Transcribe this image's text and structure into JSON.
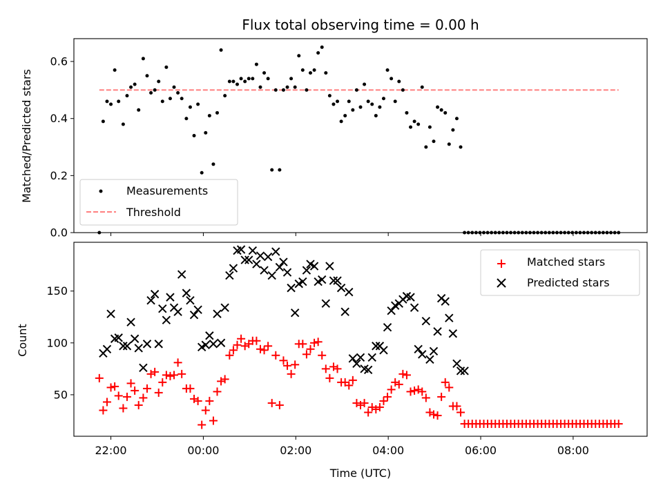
{
  "title": "Flux total observing time = 0.00 h",
  "colors": {
    "measure": "#000000",
    "threshold": "#ff7f7f",
    "matched": "#ff0000",
    "predicted": "#000000"
  },
  "chart_data": [
    {
      "type": "scatter",
      "ylabel": "Matched/Predicted stars",
      "ylim": [
        0,
        0.68
      ],
      "yticks": [
        0.0,
        0.2,
        0.4,
        0.6
      ],
      "ytick_labels": [
        "0.0",
        "0.2",
        "0.4",
        "0.6"
      ],
      "xlim": [
        "21:12",
        "09:36"
      ],
      "legend": {
        "placement": "lower-left",
        "entries": [
          "Measurements",
          "Threshold"
        ]
      },
      "threshold": 0.5,
      "series": [
        {
          "name": "Measurements",
          "x": [
            "21:45",
            "21:50",
            "21:55",
            "22:00",
            "22:05",
            "22:10",
            "22:16",
            "22:21",
            "22:26",
            "22:31",
            "22:36",
            "22:42",
            "22:47",
            "22:52",
            "22:57",
            "23:02",
            "23:07",
            "23:12",
            "23:17",
            "23:22",
            "23:27",
            "23:32",
            "23:38",
            "23:43",
            "23:48",
            "23:53",
            "23:58",
            "00:03",
            "00:08",
            "00:13",
            "00:18",
            "00:23",
            "00:28",
            "00:34",
            "00:39",
            "00:44",
            "00:49",
            "00:54",
            "00:59",
            "01:04",
            "01:09",
            "01:14",
            "01:19",
            "01:24",
            "01:29",
            "01:34",
            "01:39",
            "01:44",
            "01:49",
            "01:54",
            "01:59",
            "02:04",
            "02:09",
            "02:14",
            "02:19",
            "02:24",
            "02:29",
            "02:34",
            "02:39",
            "02:44",
            "02:49",
            "02:54",
            "02:59",
            "03:04",
            "03:09",
            "03:14",
            "03:19",
            "03:24",
            "03:29",
            "03:34",
            "03:39",
            "03:44",
            "03:49",
            "03:54",
            "03:59",
            "04:04",
            "04:09",
            "04:14",
            "04:19",
            "04:24",
            "04:29",
            "04:34",
            "04:39",
            "04:44",
            "04:49",
            "04:54",
            "04:59",
            "05:04",
            "05:09",
            "05:14",
            "05:19",
            "05:24",
            "05:29",
            "05:34",
            "05:39",
            "05:44",
            "05:49",
            "05:54",
            "05:59",
            "06:04",
            "06:09",
            "06:14",
            "06:19",
            "06:24",
            "06:29",
            "06:34",
            "06:39",
            "06:44",
            "06:49",
            "06:54",
            "06:59",
            "07:04",
            "07:09",
            "07:14",
            "07:19",
            "07:24",
            "07:29",
            "07:34",
            "07:39",
            "07:44",
            "07:49",
            "07:54",
            "07:59",
            "08:04",
            "08:09",
            "08:14",
            "08:19",
            "08:24",
            "08:29",
            "08:34",
            "08:39",
            "08:44",
            "08:49",
            "08:54",
            "08:59"
          ],
          "y": [
            0.0,
            0.39,
            0.46,
            0.45,
            0.57,
            0.46,
            0.38,
            0.48,
            0.51,
            0.52,
            0.43,
            0.61,
            0.55,
            0.49,
            0.5,
            0.53,
            0.46,
            0.58,
            0.47,
            0.51,
            0.49,
            0.47,
            0.4,
            0.44,
            0.34,
            0.45,
            0.21,
            0.35,
            0.41,
            0.24,
            0.42,
            0.64,
            0.48,
            0.53,
            0.53,
            0.52,
            0.54,
            0.53,
            0.54,
            0.54,
            0.59,
            0.51,
            0.56,
            0.54,
            0.22,
            0.5,
            0.22,
            0.5,
            0.51,
            0.54,
            0.51,
            0.62,
            0.57,
            0.5,
            0.56,
            0.57,
            0.63,
            0.65,
            0.56,
            0.48,
            0.45,
            0.46,
            0.39,
            0.41,
            0.46,
            0.43,
            0.5,
            0.44,
            0.52,
            0.46,
            0.45,
            0.41,
            0.44,
            0.47,
            0.57,
            0.54,
            0.46,
            0.53,
            0.5,
            0.42,
            0.37,
            0.39,
            0.38,
            0.51,
            0.3,
            0.37,
            0.32,
            0.44,
            0.43,
            0.42,
            0.31,
            0.36,
            0.4,
            0.3,
            0.0,
            0.0,
            0.0,
            0.0,
            0.0,
            0.0,
            0.0,
            0.0,
            0.0,
            0.0,
            0.0,
            0.0,
            0.0,
            0.0,
            0.0,
            0.0,
            0.0,
            0.0,
            0.0,
            0.0,
            0.0,
            0.0,
            0.0,
            0.0,
            0.0,
            0.0,
            0.0,
            0.0,
            0.0,
            0.0,
            0.0,
            0.0,
            0.0,
            0.0,
            0.0,
            0.0,
            0.0,
            0.0,
            0.0,
            0.0,
            0.0
          ]
        },
        {
          "name": "Threshold",
          "x": [
            "21:45",
            "08:59"
          ],
          "y": [
            0.5,
            0.5
          ]
        }
      ]
    },
    {
      "type": "scatter",
      "ylabel": "Count",
      "xlabel": "Time (UTC)",
      "ylim": [
        10,
        197
      ],
      "yticks": [
        50,
        100,
        150
      ],
      "ytick_labels": [
        "50",
        "100",
        "150"
      ],
      "xlim": [
        "21:12",
        "09:36"
      ],
      "xticks": [
        "22:00",
        "00:00",
        "02:00",
        "04:00",
        "06:00",
        "08:00"
      ],
      "xtick_labels": [
        "22:00",
        "00:00",
        "02:00",
        "04:00",
        "06:00",
        "08:00"
      ],
      "legend": {
        "placement": "upper-right",
        "entries": [
          "Matched stars",
          "Predicted stars"
        ]
      },
      "series": [
        {
          "name": "Matched stars",
          "x": [
            "21:45",
            "21:50",
            "21:55",
            "22:00",
            "22:05",
            "22:10",
            "22:16",
            "22:21",
            "22:26",
            "22:31",
            "22:36",
            "22:42",
            "22:47",
            "22:52",
            "22:57",
            "23:02",
            "23:07",
            "23:12",
            "23:17",
            "23:22",
            "23:27",
            "23:32",
            "23:38",
            "23:43",
            "23:48",
            "23:53",
            "23:58",
            "00:03",
            "00:08",
            "00:13",
            "00:18",
            "00:23",
            "00:28",
            "00:34",
            "00:39",
            "00:44",
            "00:49",
            "00:54",
            "00:59",
            "01:04",
            "01:09",
            "01:14",
            "01:19",
            "01:24",
            "01:29",
            "01:34",
            "01:39",
            "01:44",
            "01:49",
            "01:54",
            "01:59",
            "02:04",
            "02:09",
            "02:14",
            "02:19",
            "02:24",
            "02:29",
            "02:34",
            "02:39",
            "02:44",
            "02:49",
            "02:54",
            "02:59",
            "03:04",
            "03:09",
            "03:14",
            "03:19",
            "03:24",
            "03:29",
            "03:34",
            "03:39",
            "03:44",
            "03:49",
            "03:54",
            "03:59",
            "04:04",
            "04:09",
            "04:14",
            "04:19",
            "04:24",
            "04:29",
            "04:34",
            "04:39",
            "04:44",
            "04:49",
            "04:54",
            "04:59",
            "05:04",
            "05:09",
            "05:14",
            "05:19",
            "05:24",
            "05:29",
            "05:34",
            "05:39",
            "05:44",
            "05:49",
            "05:54",
            "05:59",
            "06:04",
            "06:09",
            "06:14",
            "06:19",
            "06:24",
            "06:29",
            "06:34",
            "06:39",
            "06:44",
            "06:49",
            "06:54",
            "06:59",
            "07:04",
            "07:09",
            "07:14",
            "07:19",
            "07:24",
            "07:29",
            "07:34",
            "07:39",
            "07:44",
            "07:49",
            "07:54",
            "07:59",
            "08:04",
            "08:09",
            "08:14",
            "08:19",
            "08:24",
            "08:29",
            "08:34",
            "08:39",
            "08:44",
            "08:49",
            "08:54",
            "08:59"
          ],
          "y": [
            66,
            35,
            43,
            57,
            58,
            49,
            37,
            48,
            61,
            54,
            40,
            47,
            56,
            70,
            72,
            52,
            62,
            69,
            68,
            69,
            81,
            70,
            56,
            56,
            46,
            44,
            21,
            35,
            44,
            25,
            53,
            63,
            65,
            88,
            93,
            98,
            104,
            97,
            99,
            102,
            102,
            94,
            93,
            97,
            42,
            88,
            40,
            83,
            78,
            70,
            79,
            99,
            99,
            89,
            94,
            100,
            101,
            88,
            75,
            66,
            77,
            75,
            62,
            62,
            59,
            64,
            42,
            40,
            42,
            33,
            38,
            36,
            38,
            44,
            48,
            55,
            62,
            60,
            70,
            69,
            53,
            54,
            55,
            53,
            47,
            33,
            31,
            30,
            48,
            62,
            57,
            39,
            39,
            33,
            22,
            22,
            22,
            22,
            22,
            22,
            22,
            22,
            22,
            22,
            22,
            22,
            22,
            22,
            22,
            22,
            22,
            22,
            22,
            22,
            22,
            22,
            22,
            22,
            22,
            22,
            22,
            22,
            22,
            22,
            22,
            22,
            22,
            22,
            22,
            22,
            22,
            22,
            22,
            22,
            22
          ]
        },
        {
          "name": "Predicted stars",
          "x": [
            "21:50",
            "21:55",
            "22:00",
            "22:05",
            "22:10",
            "22:16",
            "22:21",
            "22:26",
            "22:31",
            "22:36",
            "22:42",
            "22:47",
            "22:52",
            "22:57",
            "23:02",
            "23:07",
            "23:12",
            "23:17",
            "23:22",
            "23:27",
            "23:32",
            "23:38",
            "23:43",
            "23:48",
            "23:53",
            "23:58",
            "00:03",
            "00:08",
            "00:13",
            "00:18",
            "00:23",
            "00:28",
            "00:34",
            "00:39",
            "00:44",
            "00:49",
            "00:54",
            "00:59",
            "01:04",
            "01:09",
            "01:14",
            "01:19",
            "01:24",
            "01:29",
            "01:34",
            "01:39",
            "01:44",
            "01:49",
            "01:54",
            "01:59",
            "02:04",
            "02:09",
            "02:14",
            "02:19",
            "02:24",
            "02:29",
            "02:34",
            "02:39",
            "02:44",
            "02:49",
            "02:54",
            "02:59",
            "03:04",
            "03:09",
            "03:14",
            "03:19",
            "03:24",
            "03:29",
            "03:34",
            "03:39",
            "03:44",
            "03:49",
            "03:54",
            "03:59",
            "04:04",
            "04:09",
            "04:14",
            "04:19",
            "04:24",
            "04:29",
            "04:34",
            "04:39",
            "04:44",
            "04:49",
            "04:54",
            "04:59",
            "05:04",
            "05:09",
            "05:14",
            "05:19",
            "05:24",
            "05:29",
            "05:34",
            "05:39"
          ],
          "y": [
            90,
            94,
            128,
            104,
            105,
            97,
            97,
            120,
            104,
            95,
            76,
            99,
            141,
            147,
            99,
            133,
            122,
            144,
            134,
            130,
            166,
            148,
            141,
            127,
            132,
            96,
            98,
            107,
            99,
            128,
            100,
            134,
            165,
            172,
            189,
            190,
            180,
            180,
            189,
            176,
            184,
            170,
            183,
            165,
            188,
            173,
            178,
            168,
            153,
            129,
            157,
            159,
            170,
            176,
            174,
            159,
            161,
            138,
            174,
            160,
            160,
            153,
            130,
            149,
            85,
            80,
            86,
            75,
            74,
            86,
            97,
            97,
            93,
            115,
            131,
            136,
            138,
            142,
            145,
            144,
            134,
            94,
            89,
            121,
            84,
            92,
            111,
            143,
            140,
            124,
            109,
            80,
            73,
            73
          ]
        }
      ]
    }
  ]
}
